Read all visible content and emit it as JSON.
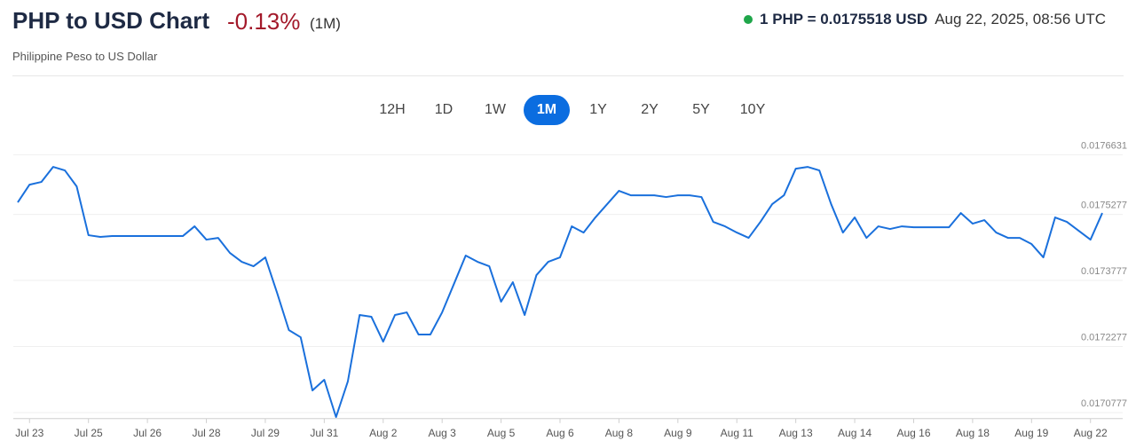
{
  "chart_data": {
    "type": "line",
    "title": "PHP to USD Chart",
    "change": "-0.13%",
    "period": "(1M)",
    "subtitle": "Philippine Peso to US Dollar",
    "rate": "1 PHP = 0.0175518 USD",
    "timestamp": "Aug 22, 2025, 08:56 UTC",
    "ranges": [
      "12H",
      "1D",
      "1W",
      "1M",
      "1Y",
      "2Y",
      "5Y",
      "10Y"
    ],
    "active_range": "1M",
    "color": "#1a70dc",
    "grid": true,
    "ylim": [
      0.017064,
      0.017692
    ],
    "yticks": [
      0.0170777,
      0.0172277,
      0.0173777,
      0.0175277,
      0.0176631
    ],
    "categories": [
      null,
      "Jul 23",
      null,
      null,
      null,
      null,
      "Jul 25",
      null,
      null,
      null,
      null,
      "Jul 26",
      null,
      null,
      null,
      null,
      "Jul 28",
      null,
      null,
      null,
      null,
      "Jul 29",
      null,
      null,
      null,
      null,
      "Jul 31",
      null,
      null,
      null,
      null,
      "Aug 2",
      null,
      null,
      null,
      null,
      "Aug 3",
      null,
      null,
      null,
      null,
      "Aug 5",
      null,
      null,
      null,
      null,
      "Aug 6",
      null,
      null,
      null,
      null,
      "Aug 8",
      null,
      null,
      null,
      null,
      "Aug 9",
      null,
      null,
      null,
      null,
      "Aug 11",
      null,
      null,
      null,
      null,
      "Aug 13",
      null,
      null,
      null,
      null,
      "Aug 14",
      null,
      null,
      null,
      null,
      "Aug 16",
      null,
      null,
      null,
      null,
      "Aug 18",
      null,
      null,
      null,
      null,
      "Aug 19",
      null,
      null,
      null,
      null,
      "Aug 22",
      null
    ],
    "values": [
      0.0175549,
      0.0175951,
      0.0176012,
      0.0176354,
      0.0176274,
      0.0175911,
      0.0174804,
      0.0174764,
      0.0174784,
      0.0174784,
      0.0174784,
      0.0174784,
      0.0174784,
      0.0174784,
      0.0174784,
      0.0175005,
      0.0174703,
      0.0174743,
      0.0174401,
      0.01742,
      0.0174099,
      0.0174301,
      0.0173495,
      0.017265,
      0.0172488,
      0.017128,
      0.0171522,
      0.0170676,
      0.0171482,
      0.0172992,
      0.0172952,
      0.0172388,
      0.0172992,
      0.0173052,
      0.0172549,
      0.0172549,
      0.0173052,
      0.0173696,
      0.0174341,
      0.01742,
      0.0174099,
      0.0173294,
      0.0173737,
      0.0172992,
      0.0173898,
      0.01742,
      0.0174301,
      0.0175005,
      0.0174864,
      0.0175207,
      0.0175509,
      0.0175811,
      0.017571,
      0.017571,
      0.017571,
      0.017567,
      0.017571,
      0.017571,
      0.017567,
      0.0175106,
      0.0175005,
      0.0174864,
      0.0174743,
      0.0175106,
      0.0175509,
      0.017571,
      0.0176314,
      0.0176354,
      0.0176274,
      0.0175509,
      0.0174864,
      0.0175207,
      0.0174743,
      0.0175005,
      0.0174945,
      0.0175005,
      0.0174985,
      0.0174985,
      0.0174985,
      0.0174985,
      0.0175307,
      0.0175066,
      0.0175146,
      0.0174864,
      0.0174743,
      0.0174743,
      0.0174603,
      0.0174301,
      0.0175207,
      0.0175106,
      0.0174905,
      0.0174703,
      0.0175307
    ]
  }
}
